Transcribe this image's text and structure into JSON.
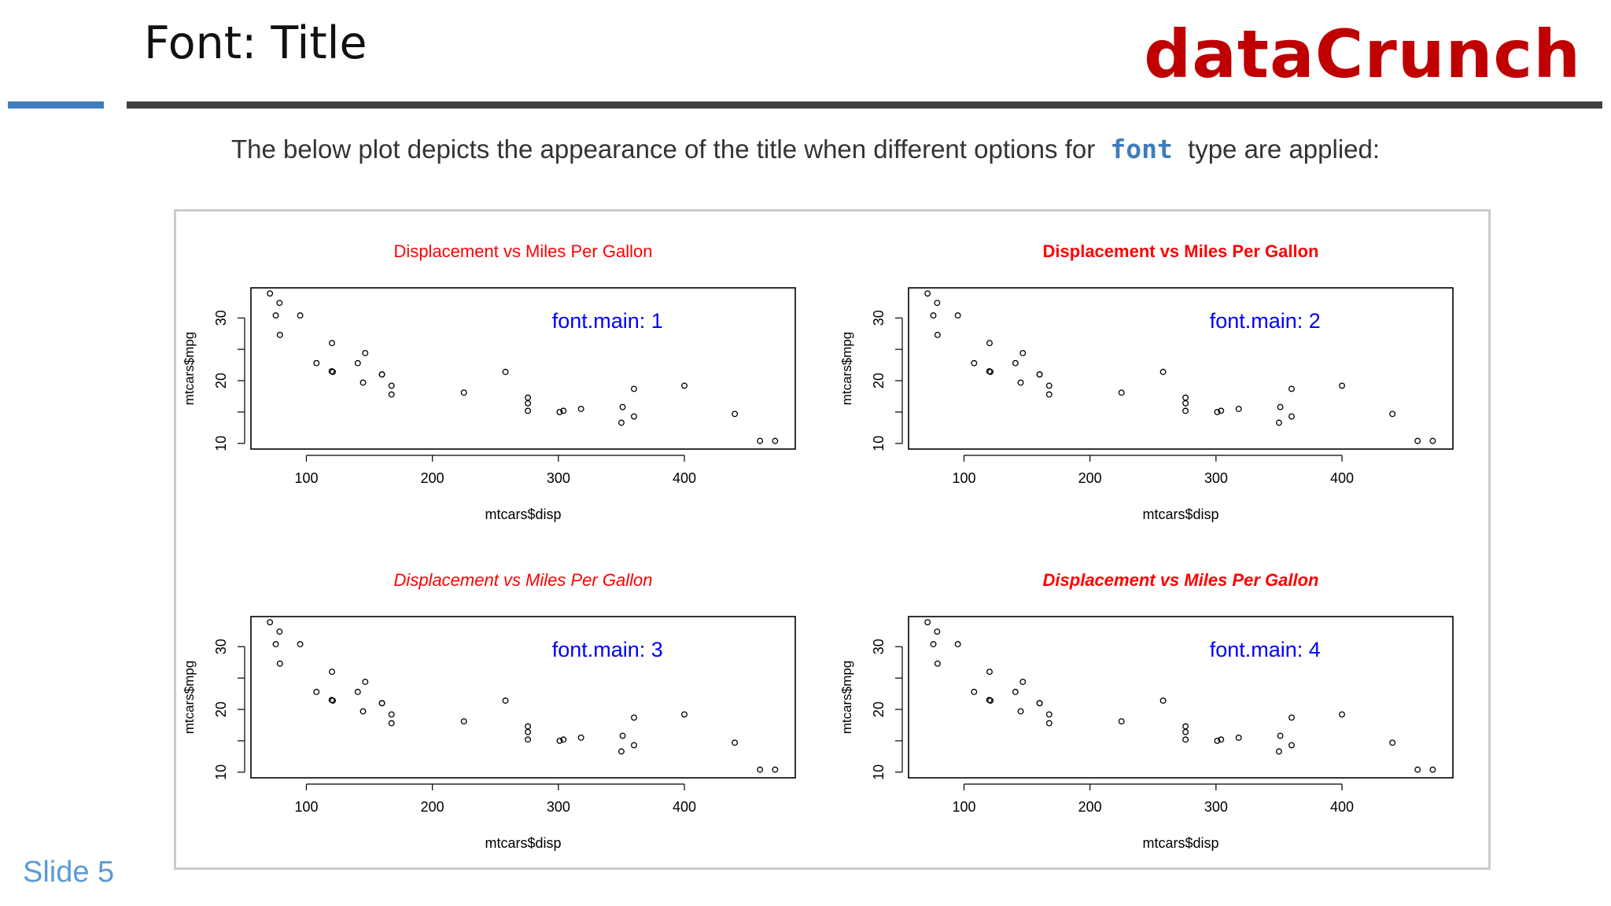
{
  "slide": {
    "title": "Font: Title",
    "brand": "dataCrunch",
    "intro_before": "The below plot depicts the appearance of the title when different options for",
    "intro_code": "font",
    "intro_after": "type are applied:",
    "slide_number": "Slide 5"
  },
  "colors": {
    "brand": "#c00000",
    "accent": "#3f7dbd",
    "plot_title": "#ff0000",
    "annotation": "#0000ff"
  },
  "chart_data": [
    {
      "type": "scatter",
      "title": "Displacement vs Miles Per Gallon",
      "title_style": "plain",
      "annotation": "font.main: 1",
      "xlabel": "mtcars$disp",
      "ylabel": "mtcars$mpg",
      "xlim": [
        56,
        488
      ],
      "ylim": [
        9.1,
        34.8
      ],
      "xticks": [
        100,
        200,
        300,
        400
      ],
      "yticks": [
        10,
        20,
        30
      ],
      "grid": false,
      "x": [
        160,
        160,
        108,
        258,
        360,
        225,
        360,
        146.7,
        140.8,
        167.6,
        167.6,
        275.8,
        275.8,
        275.8,
        472,
        460,
        440,
        78.7,
        75.7,
        71.1,
        120.1,
        318,
        304,
        350,
        400,
        79,
        120.3,
        95.1,
        351,
        145,
        301,
        121
      ],
      "y": [
        21,
        21,
        22.8,
        21.4,
        18.7,
        18.1,
        14.3,
        24.4,
        22.8,
        19.2,
        17.8,
        16.4,
        17.3,
        15.2,
        10.4,
        10.4,
        14.7,
        32.4,
        30.4,
        33.9,
        21.5,
        15.5,
        15.2,
        13.3,
        19.2,
        27.3,
        26,
        30.4,
        15.8,
        19.7,
        15,
        21.4
      ]
    },
    {
      "type": "scatter",
      "title": "Displacement vs Miles Per Gallon",
      "title_style": "bold",
      "annotation": "font.main: 2",
      "xlabel": "mtcars$disp",
      "ylabel": "mtcars$mpg",
      "xlim": [
        56,
        488
      ],
      "ylim": [
        9.1,
        34.8
      ],
      "xticks": [
        100,
        200,
        300,
        400
      ],
      "yticks": [
        10,
        20,
        30
      ],
      "grid": false,
      "x": [
        160,
        160,
        108,
        258,
        360,
        225,
        360,
        146.7,
        140.8,
        167.6,
        167.6,
        275.8,
        275.8,
        275.8,
        472,
        460,
        440,
        78.7,
        75.7,
        71.1,
        120.1,
        318,
        304,
        350,
        400,
        79,
        120.3,
        95.1,
        351,
        145,
        301,
        121
      ],
      "y": [
        21,
        21,
        22.8,
        21.4,
        18.7,
        18.1,
        14.3,
        24.4,
        22.8,
        19.2,
        17.8,
        16.4,
        17.3,
        15.2,
        10.4,
        10.4,
        14.7,
        32.4,
        30.4,
        33.9,
        21.5,
        15.5,
        15.2,
        13.3,
        19.2,
        27.3,
        26,
        30.4,
        15.8,
        19.7,
        15,
        21.4
      ]
    },
    {
      "type": "scatter",
      "title": "Displacement vs Miles Per Gallon",
      "title_style": "italic",
      "annotation": "font.main: 3",
      "xlabel": "mtcars$disp",
      "ylabel": "mtcars$mpg",
      "xlim": [
        56,
        488
      ],
      "ylim": [
        9.1,
        34.8
      ],
      "xticks": [
        100,
        200,
        300,
        400
      ],
      "yticks": [
        10,
        20,
        30
      ],
      "grid": false,
      "x": [
        160,
        160,
        108,
        258,
        360,
        225,
        360,
        146.7,
        140.8,
        167.6,
        167.6,
        275.8,
        275.8,
        275.8,
        472,
        460,
        440,
        78.7,
        75.7,
        71.1,
        120.1,
        318,
        304,
        350,
        400,
        79,
        120.3,
        95.1,
        351,
        145,
        301,
        121
      ],
      "y": [
        21,
        21,
        22.8,
        21.4,
        18.7,
        18.1,
        14.3,
        24.4,
        22.8,
        19.2,
        17.8,
        16.4,
        17.3,
        15.2,
        10.4,
        10.4,
        14.7,
        32.4,
        30.4,
        33.9,
        21.5,
        15.5,
        15.2,
        13.3,
        19.2,
        27.3,
        26,
        30.4,
        15.8,
        19.7,
        15,
        21.4
      ]
    },
    {
      "type": "scatter",
      "title": "Displacement vs Miles Per Gallon",
      "title_style": "bold-italic",
      "annotation": "font.main: 4",
      "xlabel": "mtcars$disp",
      "ylabel": "mtcars$mpg",
      "xlim": [
        56,
        488
      ],
      "ylim": [
        9.1,
        34.8
      ],
      "xticks": [
        100,
        200,
        300,
        400
      ],
      "yticks": [
        10,
        20,
        30
      ],
      "grid": false,
      "x": [
        160,
        160,
        108,
        258,
        360,
        225,
        360,
        146.7,
        140.8,
        167.6,
        167.6,
        275.8,
        275.8,
        275.8,
        472,
        460,
        440,
        78.7,
        75.7,
        71.1,
        120.1,
        318,
        304,
        350,
        400,
        79,
        120.3,
        95.1,
        351,
        145,
        301,
        121
      ],
      "y": [
        21,
        21,
        22.8,
        21.4,
        18.7,
        18.1,
        14.3,
        24.4,
        22.8,
        19.2,
        17.8,
        16.4,
        17.3,
        15.2,
        10.4,
        10.4,
        14.7,
        32.4,
        30.4,
        33.9,
        21.5,
        15.5,
        15.2,
        13.3,
        19.2,
        27.3,
        26,
        30.4,
        15.8,
        19.7,
        15,
        21.4
      ]
    }
  ]
}
